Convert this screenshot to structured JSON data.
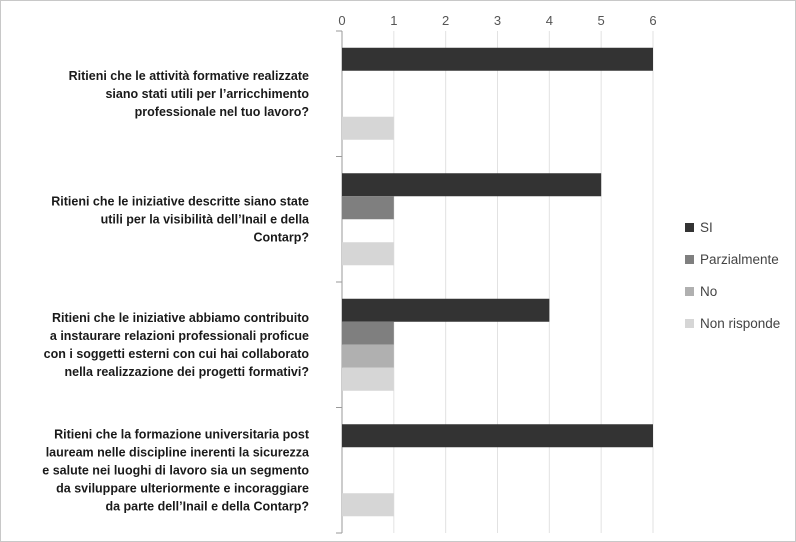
{
  "chart_data": {
    "type": "bar",
    "orientation": "horizontal",
    "title": "",
    "xlabel": "",
    "ylabel": "",
    "xlim": [
      0,
      6
    ],
    "ticks": [
      0,
      1,
      2,
      3,
      4,
      5,
      6
    ],
    "grid": true,
    "legend_position": "right",
    "categories": [
      [
        "Ritieni che le attività formative realizzate",
        "siano stati utili per l’arricchimento",
        "professionale nel tuo lavoro?"
      ],
      [
        "Ritieni che le iniziative descritte siano state",
        "utili per la visibilità dell’Inail e della",
        "Contarp?"
      ],
      [
        "Ritieni che le iniziative abbiamo contribuito",
        "a instaurare relazioni professionali proficue",
        "con i soggetti esterni con cui hai collaborato",
        "nella realizzazione dei progetti formativi?"
      ],
      [
        "Ritieni che la formazione universitaria post",
        "lauream nelle discipline inerenti la sicurezza",
        "e salute nei luoghi di lavoro sia un segmento",
        "da sviluppare ulteriormente e incoraggiare",
        "da parte dell’Inail e della Contarp?"
      ]
    ],
    "series": [
      {
        "name": "SI",
        "color": "#333333",
        "values": [
          6,
          5,
          4,
          6
        ]
      },
      {
        "name": "Parzialmente",
        "color": "#7f7f7f",
        "values": [
          0,
          1,
          1,
          0
        ]
      },
      {
        "name": "No",
        "color": "#b0b0b0",
        "values": [
          0,
          0,
          1,
          0
        ]
      },
      {
        "name": "Non risponde",
        "color": "#d6d6d6",
        "values": [
          1,
          1,
          1,
          1
        ]
      }
    ]
  }
}
